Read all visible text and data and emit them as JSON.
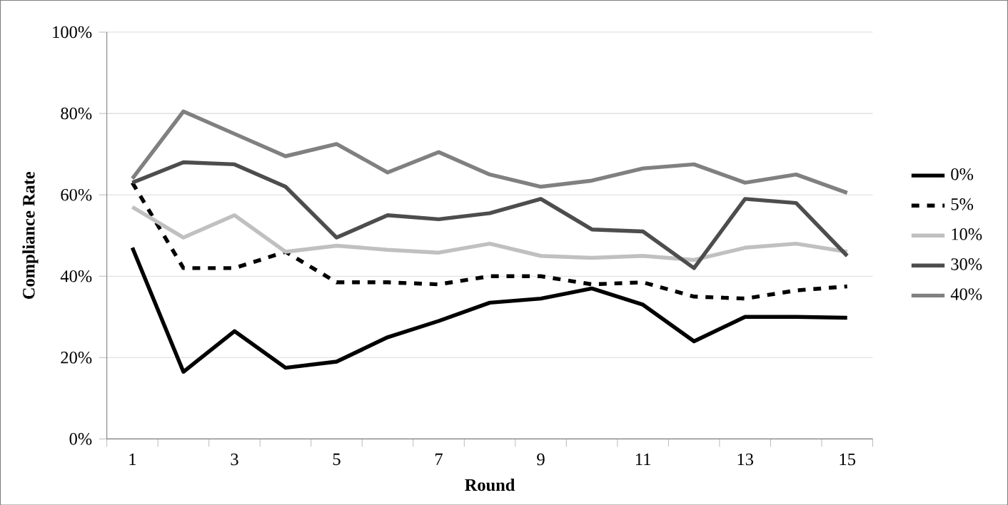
{
  "chart_data": {
    "type": "line",
    "xlabel": "Round",
    "ylabel": "Compliance Rate",
    "categories": [
      "1",
      null,
      "3",
      null,
      "5",
      null,
      "7",
      null,
      "9",
      null,
      "11",
      null,
      "13",
      null,
      "15"
    ],
    "ylim": [
      0,
      100
    ],
    "yticks": [
      {
        "value": 0,
        "label": "0%"
      },
      {
        "value": 20,
        "label": "20%"
      },
      {
        "value": 40,
        "label": "40%"
      },
      {
        "value": 60,
        "label": "60%"
      },
      {
        "value": 80,
        "label": "80%"
      },
      {
        "value": 100,
        "label": "100%"
      }
    ],
    "grid": "y",
    "legend": "right",
    "marker": "none",
    "series": [
      {
        "name": "0%",
        "color": "#000000",
        "line_style": "solid",
        "values": [
          47,
          16.5,
          26.5,
          17.5,
          19,
          25,
          29,
          33.5,
          34.5,
          37,
          33,
          24,
          30,
          30,
          29.8
        ]
      },
      {
        "name": "5%",
        "color": "#000000",
        "line_style": "dashed",
        "values": [
          63,
          42,
          42,
          46,
          38.5,
          38.5,
          38,
          40,
          40,
          38,
          38.5,
          35,
          34.5,
          36.5,
          37.5
        ]
      },
      {
        "name": "10%",
        "color": "#c0c0c0",
        "line_style": "solid",
        "values": [
          57,
          49.5,
          55,
          46,
          47.5,
          46.5,
          45.8,
          48,
          45,
          44.5,
          45,
          44,
          47,
          48,
          46
        ]
      },
      {
        "name": "30%",
        "color": "#4d4d4d",
        "line_style": "solid",
        "values": [
          63,
          68,
          67.5,
          62,
          49.5,
          55,
          54,
          55.5,
          59,
          51.5,
          51,
          42,
          59,
          58,
          45
        ]
      },
      {
        "name": "40%",
        "color": "#808080",
        "line_style": "solid",
        "values": [
          64,
          80.5,
          75,
          69.5,
          72.5,
          65.5,
          70.5,
          65,
          62,
          63.5,
          66.5,
          67.5,
          63,
          65,
          60.5
        ]
      }
    ]
  }
}
